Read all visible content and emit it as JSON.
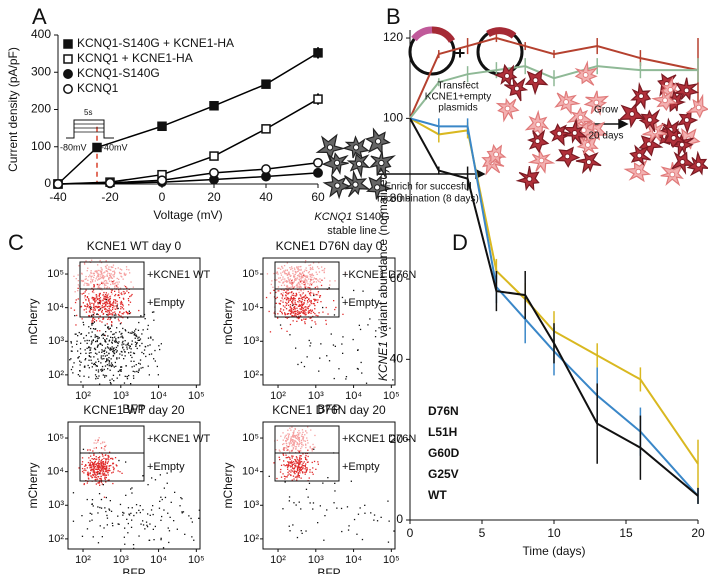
{
  "panels": [
    "A",
    "B",
    "C",
    "D"
  ],
  "chart_data": [
    {
      "type": "line",
      "xlabel": "Voltage (mV)",
      "ylabel": "Current density (pA/pF)",
      "xlim": [
        -40,
        60
      ],
      "xticks": [
        -40,
        -20,
        0,
        20,
        40,
        60
      ],
      "ylim": [
        0,
        400
      ],
      "yticks": [
        0,
        100,
        200,
        300,
        400
      ],
      "legend": "upper left",
      "vline": -25,
      "vline_color": "#d9412b",
      "protocol": {
        "duration": "5s",
        "hold": "-80mV",
        "step": "-40mV"
      },
      "series": [
        {
          "name": "KCNQ1-S140G + KCNE1-HA",
          "color": "#000000",
          "marker": "square-filled",
          "x": [
            -40,
            -25,
            0,
            20,
            40,
            60
          ],
          "values": [
            0,
            98,
            155,
            210,
            268,
            352
          ],
          "errors": [
            0,
            5,
            6,
            9,
            8,
            15
          ]
        },
        {
          "name": "KCNQ1 + KCNE1-HA",
          "color": "#000000",
          "marker": "square-open",
          "x": [
            -40,
            -20,
            0,
            20,
            40,
            60
          ],
          "values": [
            0,
            5,
            25,
            75,
            148,
            228
          ],
          "errors": [
            0,
            2,
            3,
            5,
            8,
            15
          ]
        },
        {
          "name": "KCNQ1-S140G",
          "color": "#000000",
          "marker": "circle-filled",
          "x": [
            -40,
            -20,
            0,
            20,
            40,
            60
          ],
          "values": [
            0,
            2,
            5,
            12,
            20,
            30
          ],
          "errors": [
            0,
            1,
            2,
            2,
            3,
            4
          ]
        },
        {
          "name": "KCNQ1",
          "color": "#000000",
          "marker": "circle-open",
          "x": [
            -40,
            -20,
            0,
            20,
            40,
            60
          ],
          "values": [
            0,
            3,
            10,
            30,
            40,
            57
          ],
          "errors": [
            0,
            1,
            2,
            3,
            3,
            4
          ]
        }
      ]
    },
    {
      "type": "line",
      "xlabel": "Time (days)",
      "ylabel_italic": "KCNE1",
      "ylabel": "variant  abundance (normalized)",
      "x": [
        0,
        2,
        4,
        6,
        8,
        10,
        13,
        16,
        20
      ],
      "xlim": [
        0,
        20
      ],
      "xticks": [
        0,
        5,
        10,
        15,
        20
      ],
      "ylim": [
        0,
        122
      ],
      "yticks": [
        0,
        20,
        40,
        60,
        80,
        100,
        120
      ],
      "legend": "lower left",
      "series": [
        {
          "name": "D76N",
          "color": "#b5412f",
          "values": [
            100,
            116,
            118,
            120,
            118,
            116,
            118,
            115,
            112
          ],
          "errors": [
            0,
            1,
            2,
            1,
            1,
            1,
            2,
            2,
            8
          ]
        },
        {
          "name": "L51H",
          "color": "#8fb996",
          "values": [
            100,
            109,
            111,
            112,
            113,
            110,
            113,
            112,
            112
          ],
          "errors": [
            0,
            1,
            2,
            2,
            2,
            2,
            2,
            2,
            3
          ]
        },
        {
          "name": "G60D",
          "color": "#d9b820",
          "values": [
            100,
            96,
            97,
            62,
            55,
            47,
            41,
            35,
            14
          ],
          "errors": [
            0,
            2,
            2,
            3,
            4,
            5,
            3,
            3,
            6
          ]
        },
        {
          "name": "G25V",
          "color": "#3a87c8",
          "values": [
            100,
            98,
            98,
            58,
            50,
            42,
            31,
            22,
            6
          ],
          "errors": [
            0,
            2,
            2,
            4,
            6,
            6,
            7,
            6,
            2
          ]
        },
        {
          "name": "WT",
          "color": "#111111",
          "values": [
            100,
            87,
            85,
            57,
            56,
            44,
            24,
            18,
            6
          ],
          "errors": [
            0,
            1,
            3,
            5,
            6,
            5,
            10,
            8,
            2
          ]
        }
      ]
    }
  ],
  "diagram": {
    "transfect": [
      "Transfect",
      "KCNE1+empty",
      "plasmids"
    ],
    "enrich": [
      "Enrich for succesful",
      "recombination (8 days)"
    ],
    "grow": [
      "Grow",
      "20 days"
    ],
    "line_italic": "KCNQ1",
    "line": "S140G",
    "line2": "stable line"
  },
  "flow": {
    "xlabel": "BFP",
    "ylabel": "mCherry",
    "scale": "log",
    "xlim": [
      40,
      125000
    ],
    "ylim": [
      50,
      300000
    ],
    "ticks": [
      {
        "value": 100,
        "label": "10²"
      },
      {
        "value": 1000,
        "label": "10³"
      },
      {
        "value": 10000,
        "label": "10⁴"
      },
      {
        "value": 100000,
        "label": "10⁵"
      }
    ],
    "plots": [
      {
        "title": "KCNE1 WT day 0",
        "gates": [
          "+KCNE1 WT",
          "+Empty"
        ]
      },
      {
        "title": "KCNE1 D76N day 0",
        "gates": [
          "+KCNE1 D76N",
          "+Empty"
        ]
      },
      {
        "title": "KCNE1 WT day 20",
        "gates": [
          "+KCNE1 WT",
          "+Empty"
        ]
      },
      {
        "title": "KCNE1 D76N day 20",
        "gates": [
          "+KCNE1 D76N",
          "+Empty"
        ]
      }
    ]
  }
}
